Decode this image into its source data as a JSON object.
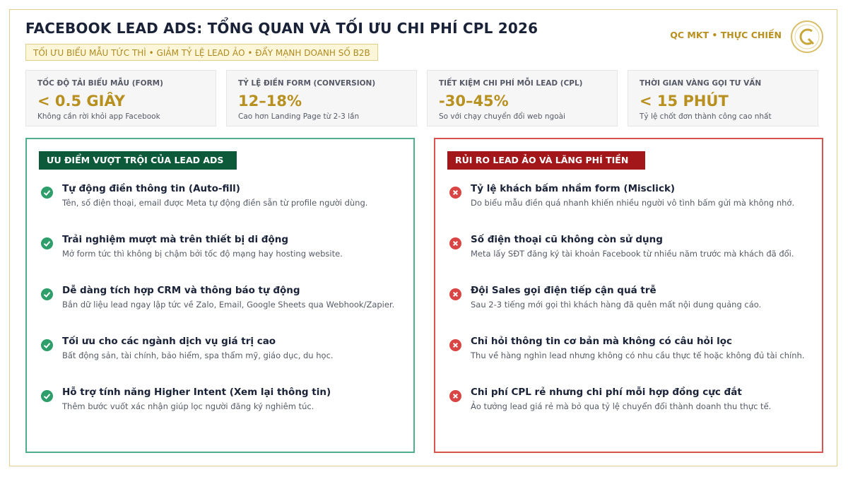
{
  "header": {
    "title": "FACEBOOK LEAD ADS: TỔNG QUAN VÀ TỐI ƯU CHI PHÍ CPL 2026",
    "subtitle": "TỐI ƯU BIỂU MẪU TỨC THÌ • GIẢM TỶ LỆ LEAD ẢO • ĐẨY MẠNH DOANH SỐ B2B",
    "brand": "QC MKT • THỰC CHIẾN"
  },
  "stats": [
    {
      "label": "TỐC ĐỘ TẢI BIỂU MẪU (FORM)",
      "value": "< 0.5 GIÂY",
      "note": "Không cần rời khỏi app Facebook"
    },
    {
      "label": "TỶ LỆ ĐIỀN FORM (CONVERSION)",
      "value": "12–18%",
      "note": "Cao hơn Landing Page từ 2-3 lần"
    },
    {
      "label": "TIẾT KIỆM CHI PHÍ MỖI LEAD (CPL)",
      "value": "-30–45%",
      "note": "So với chạy chuyển đổi web ngoài"
    },
    {
      "label": "THỜI GIAN VÀNG GỌI TƯ VẤN",
      "value": "< 15 PHÚT",
      "note": "Tỷ lệ chốt đơn thành công cao nhất"
    }
  ],
  "pros": {
    "title": "ƯU ĐIỂM VƯỢT TRỘI CỦA LEAD ADS",
    "items": [
      {
        "title": "Tự động điền thông tin (Auto-fill)",
        "text": "Tên, số điện thoại, email được Meta tự động điền sẵn từ profile người dùng."
      },
      {
        "title": "Trải nghiệm mượt mà trên thiết bị di động",
        "text": "Mở form tức thì không bị chậm bởi tốc độ mạng hay hosting website."
      },
      {
        "title": "Dễ dàng tích hợp CRM và thông báo tự động",
        "text": "Bắn dữ liệu lead ngay lập tức về Zalo, Email, Google Sheets qua Webhook/Zapier."
      },
      {
        "title": "Tối ưu cho các ngành dịch vụ giá trị cao",
        "text": "Bất động sản, tài chính, bảo hiểm, spa thẩm mỹ, giáo dục, du học."
      },
      {
        "title": "Hỗ trợ tính năng Higher Intent (Xem lại thông tin)",
        "text": "Thêm bước vuốt xác nhận giúp lọc người đăng ký nghiêm túc."
      }
    ]
  },
  "cons": {
    "title": "RỦI RO LEAD ẢO VÀ LÃNG PHÍ TIỀN",
    "items": [
      {
        "title": "Tỷ lệ khách bấm nhầm form (Misclick)",
        "text": "Do biểu mẫu điền quá nhanh khiến nhiều người vô tình bấm gửi mà không nhớ."
      },
      {
        "title": "Số điện thoại cũ không còn sử dụng",
        "text": "Meta lấy SĐT đăng ký tài khoản Facebook từ nhiều năm trước mà khách đã đổi."
      },
      {
        "title": "Đội Sales gọi điện tiếp cận quá trễ",
        "text": "Sau 2-3 tiếng mới gọi thì khách hàng đã quên mất nội dung quảng cáo."
      },
      {
        "title": "Chỉ hỏi thông tin cơ bản mà không có câu hỏi lọc",
        "text": "Thu về hàng nghìn lead nhưng không có nhu cầu thực tế hoặc không đủ tài chính."
      },
      {
        "title": "Chi phí CPL rẻ nhưng chi phí mỗi hợp đồng cực đắt",
        "text": "Ảo tưởng lead giá rẻ mà bỏ qua tỷ lệ chuyển đổi thành doanh thu thực tế."
      }
    ]
  }
}
